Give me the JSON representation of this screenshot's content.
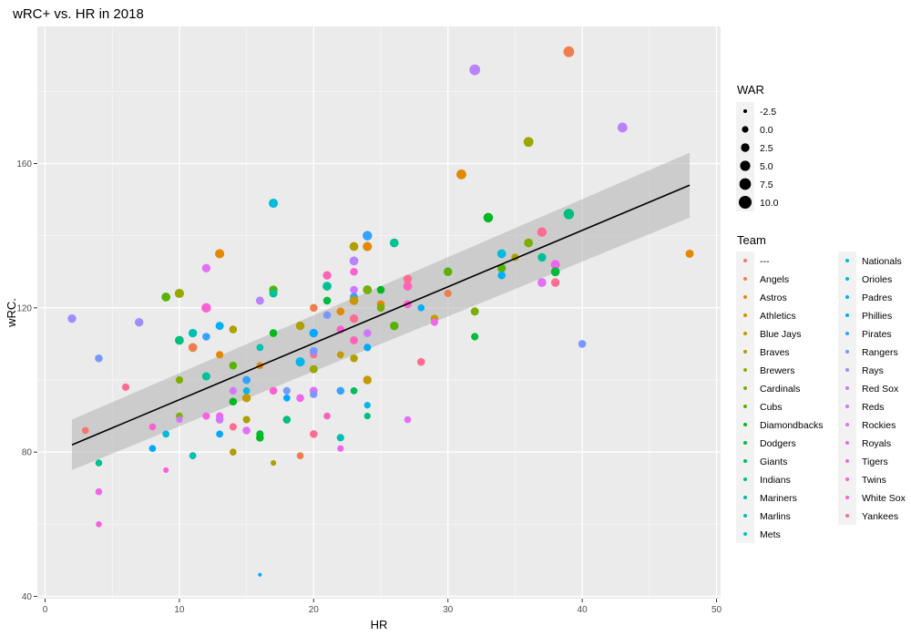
{
  "chart_data": {
    "type": "scatter",
    "title": "wRC+ vs. HR in 2018",
    "xlabel": "HR",
    "ylabel": "wRC.",
    "xlim": [
      0,
      50
    ],
    "ylim": [
      40,
      195
    ],
    "xticks": [
      0,
      10,
      20,
      30,
      40,
      50
    ],
    "yticks": [
      40,
      80,
      120,
      160
    ],
    "grid": true,
    "legend_placement": "right",
    "size_legend": {
      "title": "WAR",
      "values": [
        "-2.5",
        "0.0",
        "2.5",
        "5.0",
        "7.5",
        "10.0"
      ]
    },
    "color_legend": {
      "title": "Team",
      "teams": [
        "---",
        "Angels",
        "Astros",
        "Athletics",
        "Blue Jays",
        "Braves",
        "Brewers",
        "Cardinals",
        "Cubs",
        "Diamondbacks",
        "Dodgers",
        "Giants",
        "Indians",
        "Mariners",
        "Marlins",
        "Mets",
        "Nationals",
        "Orioles",
        "Padres",
        "Phillies",
        "Pirates",
        "Rangers",
        "Rays",
        "Red Sox",
        "Reds",
        "Rockies",
        "Royals",
        "Tigers",
        "Twins",
        "White Sox",
        "Yankees"
      ],
      "colors": [
        "#F8766D",
        "#F07E4D",
        "#E38900",
        "#D59100",
        "#C49A00",
        "#B09F00",
        "#99A800",
        "#7CAE00",
        "#58B300",
        "#00B81F",
        "#00BB3B",
        "#00BD5C",
        "#00BF7D",
        "#00C097",
        "#00C0AF",
        "#00BFC4",
        "#00BCD8",
        "#00B7E9",
        "#00B0F6",
        "#00A9FF",
        "#35A2FF",
        "#7997FF",
        "#9F8CFF",
        "#BA83FF",
        "#D177FF",
        "#E46FF6",
        "#F066EA",
        "#F862DC",
        "#FD61D1",
        "#FF63B7",
        "#FF6C91"
      ]
    },
    "trend": {
      "x": [
        2,
        48
      ],
      "y": [
        82,
        154
      ],
      "ci_low_start": 75,
      "ci_high_start": 89,
      "ci_low_end": 145,
      "ci_high_end": 163
    },
    "points": [
      {
        "x": 2,
        "y": 117,
        "war": 2.5,
        "team": "Rays"
      },
      {
        "x": 3,
        "y": 86,
        "war": 0.5,
        "team": "---"
      },
      {
        "x": 4,
        "y": 106,
        "war": 1.5,
        "team": "Rangers"
      },
      {
        "x": 4,
        "y": 77,
        "war": 0.5,
        "team": "Mariners"
      },
      {
        "x": 4,
        "y": 69,
        "war": 0.5,
        "team": "Royals"
      },
      {
        "x": 4,
        "y": 60,
        "war": -0.5,
        "team": "Tigers"
      },
      {
        "x": 6,
        "y": 98,
        "war": 1.0,
        "team": "Yankees"
      },
      {
        "x": 7,
        "y": 116,
        "war": 2.5,
        "team": "Rays"
      },
      {
        "x": 8,
        "y": 87,
        "war": 0.5,
        "team": "Twins"
      },
      {
        "x": 8,
        "y": 81,
        "war": 0.5,
        "team": "Phillies"
      },
      {
        "x": 9,
        "y": 123,
        "war": 3.0,
        "team": "Cubs"
      },
      {
        "x": 9,
        "y": 85,
        "war": 0.5,
        "team": "Nationals"
      },
      {
        "x": 9,
        "y": 75,
        "war": -1.0,
        "team": "Tigers"
      },
      {
        "x": 10,
        "y": 124,
        "war": 3.5,
        "team": "Brewers"
      },
      {
        "x": 10,
        "y": 111,
        "war": 3.0,
        "team": "Indians"
      },
      {
        "x": 10,
        "y": 100,
        "war": 1.0,
        "team": "Cardinals"
      },
      {
        "x": 10,
        "y": 90,
        "war": 0.5,
        "team": "Cardinals"
      },
      {
        "x": 10,
        "y": 89,
        "war": 0.0,
        "team": "Reds"
      },
      {
        "x": 11,
        "y": 113,
        "war": 2.5,
        "team": "Marlins"
      },
      {
        "x": 11,
        "y": 109,
        "war": 3.0,
        "team": "Angels"
      },
      {
        "x": 11,
        "y": 79,
        "war": 0.5,
        "team": "Marlins"
      },
      {
        "x": 12,
        "y": 131,
        "war": 2.5,
        "team": "Rockies"
      },
      {
        "x": 12,
        "y": 120,
        "war": 4.0,
        "team": "Twins"
      },
      {
        "x": 12,
        "y": 112,
        "war": 1.5,
        "team": "Pirates"
      },
      {
        "x": 12,
        "y": 101,
        "war": 2.0,
        "team": "Mariners"
      },
      {
        "x": 12,
        "y": 90,
        "war": 1.0,
        "team": "Tigers"
      },
      {
        "x": 13,
        "y": 135,
        "war": 3.5,
        "team": "Astros"
      },
      {
        "x": 13,
        "y": 115,
        "war": 2.0,
        "team": "Padres"
      },
      {
        "x": 13,
        "y": 107,
        "war": 1.0,
        "team": "Astros"
      },
      {
        "x": 13,
        "y": 90,
        "war": 1.0,
        "team": "Royals"
      },
      {
        "x": 13,
        "y": 89,
        "war": 1.5,
        "team": "Reds"
      },
      {
        "x": 13,
        "y": 85,
        "war": 0.5,
        "team": "Phillies"
      },
      {
        "x": 14,
        "y": 114,
        "war": 1.5,
        "team": "Braves"
      },
      {
        "x": 14,
        "y": 104,
        "war": 1.5,
        "team": "Cubs"
      },
      {
        "x": 14,
        "y": 97,
        "war": 1.0,
        "team": "Reds"
      },
      {
        "x": 14,
        "y": 94,
        "war": 1.5,
        "team": "Diamondbacks"
      },
      {
        "x": 14,
        "y": 87,
        "war": 1.0,
        "team": "Yankees"
      },
      {
        "x": 14,
        "y": 80,
        "war": 0.5,
        "team": "Braves"
      },
      {
        "x": 15,
        "y": 100,
        "war": 2.0,
        "team": "Pirates"
      },
      {
        "x": 15,
        "y": 97,
        "war": 0.5,
        "team": "Orioles"
      },
      {
        "x": 15,
        "y": 95,
        "war": 2.5,
        "team": "Blue Jays"
      },
      {
        "x": 15,
        "y": 89,
        "war": 1.0,
        "team": "Braves"
      },
      {
        "x": 15,
        "y": 86,
        "war": 1.5,
        "team": "Rockies"
      },
      {
        "x": 16,
        "y": 122,
        "war": 2.0,
        "team": "Red Sox"
      },
      {
        "x": 16,
        "y": 109,
        "war": 0.5,
        "team": "Marlins"
      },
      {
        "x": 16,
        "y": 104,
        "war": 0.5,
        "team": "Astros"
      },
      {
        "x": 16,
        "y": 85,
        "war": 1.0,
        "team": "Dodgers"
      },
      {
        "x": 16,
        "y": 84,
        "war": 1.5,
        "team": "Diamondbacks"
      },
      {
        "x": 16,
        "y": 46,
        "war": -2.5,
        "team": "Phillies"
      },
      {
        "x": 17,
        "y": 149,
        "war": 3.5,
        "team": "Nationals"
      },
      {
        "x": 17,
        "y": 125,
        "war": 2.5,
        "team": "Cubs"
      },
      {
        "x": 17,
        "y": 124,
        "war": 2.0,
        "team": "Mariners"
      },
      {
        "x": 17,
        "y": 113,
        "war": 1.5,
        "team": "Diamondbacks"
      },
      {
        "x": 17,
        "y": 97,
        "war": 1.5,
        "team": "Twins"
      },
      {
        "x": 17,
        "y": 77,
        "war": -1.0,
        "team": "Braves"
      },
      {
        "x": 18,
        "y": 97,
        "war": 1.0,
        "team": "Rangers"
      },
      {
        "x": 18,
        "y": 95,
        "war": 0.5,
        "team": "Phillies"
      },
      {
        "x": 18,
        "y": 89,
        "war": 1.5,
        "team": "Indians"
      },
      {
        "x": 19,
        "y": 115,
        "war": 2.5,
        "team": "Braves"
      },
      {
        "x": 19,
        "y": 105,
        "war": 3.5,
        "team": "Orioles"
      },
      {
        "x": 19,
        "y": 95,
        "war": 1.5,
        "team": "Royals"
      },
      {
        "x": 19,
        "y": 79,
        "war": 0.5,
        "team": "Angels"
      },
      {
        "x": 20,
        "y": 120,
        "war": 1.5,
        "team": "Angels"
      },
      {
        "x": 20,
        "y": 113,
        "war": 2.5,
        "team": "Phillies"
      },
      {
        "x": 20,
        "y": 107,
        "war": 1.0,
        "team": "Yankees"
      },
      {
        "x": 20,
        "y": 108,
        "war": 2.0,
        "team": "Rangers"
      },
      {
        "x": 20,
        "y": 103,
        "war": 2.0,
        "team": "Brewers"
      },
      {
        "x": 20,
        "y": 97,
        "war": 2.0,
        "team": "Rockies"
      },
      {
        "x": 20,
        "y": 96,
        "war": 1.0,
        "team": "Rangers"
      },
      {
        "x": 20,
        "y": 85,
        "war": 1.5,
        "team": "Yankees"
      },
      {
        "x": 21,
        "y": 129,
        "war": 2.5,
        "team": "White Sox"
      },
      {
        "x": 21,
        "y": 126,
        "war": 3.0,
        "team": "Mariners"
      },
      {
        "x": 21,
        "y": 122,
        "war": 1.5,
        "team": "Dodgers"
      },
      {
        "x": 21,
        "y": 118,
        "war": 1.5,
        "team": "Rangers"
      },
      {
        "x": 21,
        "y": 90,
        "war": 0.5,
        "team": "White Sox"
      },
      {
        "x": 22,
        "y": 119,
        "war": 1.5,
        "team": "Astros"
      },
      {
        "x": 22,
        "y": 114,
        "war": 1.5,
        "team": "Twins"
      },
      {
        "x": 22,
        "y": 107,
        "war": 0.5,
        "team": "Blue Jays"
      },
      {
        "x": 22,
        "y": 97,
        "war": 1.5,
        "team": "Pirates"
      },
      {
        "x": 22,
        "y": 84,
        "war": 1.0,
        "team": "Marlins"
      },
      {
        "x": 22,
        "y": 81,
        "war": 0.0,
        "team": "Royals"
      },
      {
        "x": 23,
        "y": 137,
        "war": 3.0,
        "team": "Braves"
      },
      {
        "x": 23,
        "y": 133,
        "war": 3.0,
        "team": "Red Sox"
      },
      {
        "x": 23,
        "y": 130,
        "war": 1.5,
        "team": "Twins"
      },
      {
        "x": 23,
        "y": 125,
        "war": 1.5,
        "team": "Reds"
      },
      {
        "x": 23,
        "y": 123,
        "war": 2.0,
        "team": "Pirates"
      },
      {
        "x": 23,
        "y": 122,
        "war": 3.0,
        "team": "Blue Jays"
      },
      {
        "x": 23,
        "y": 117,
        "war": 2.5,
        "team": "Yankees"
      },
      {
        "x": 23,
        "y": 111,
        "war": 2.0,
        "team": "White Sox"
      },
      {
        "x": 23,
        "y": 106,
        "war": 1.5,
        "team": "Braves"
      },
      {
        "x": 23,
        "y": 97,
        "war": 0.5,
        "team": "Giants"
      },
      {
        "x": 24,
        "y": 140,
        "war": 4.0,
        "team": "Pirates"
      },
      {
        "x": 24,
        "y": 137,
        "war": 3.5,
        "team": "Astros"
      },
      {
        "x": 24,
        "y": 125,
        "war": 3.0,
        "team": "Dodgers"
      },
      {
        "x": 24,
        "y": 125,
        "war": 2.5,
        "team": "Cardinals"
      },
      {
        "x": 24,
        "y": 113,
        "war": 1.5,
        "team": "Reds"
      },
      {
        "x": 24,
        "y": 109,
        "war": 1.0,
        "team": "Phillies"
      },
      {
        "x": 24,
        "y": 100,
        "war": 2.5,
        "team": "Blue Jays"
      },
      {
        "x": 24,
        "y": 93,
        "war": 0.0,
        "team": "Orioles"
      },
      {
        "x": 24,
        "y": 90,
        "war": 0.0,
        "team": "Indians"
      },
      {
        "x": 25,
        "y": 125,
        "war": 1.5,
        "team": "Diamondbacks"
      },
      {
        "x": 25,
        "y": 121,
        "war": 1.5,
        "team": "Astros"
      },
      {
        "x": 25,
        "y": 120,
        "war": 1.5,
        "team": "Cardinals"
      },
      {
        "x": 26,
        "y": 138,
        "war": 3.0,
        "team": "Mariners"
      },
      {
        "x": 26,
        "y": 115,
        "war": 2.5,
        "team": "Cubs"
      },
      {
        "x": 27,
        "y": 128,
        "war": 2.5,
        "team": "Yankees"
      },
      {
        "x": 27,
        "y": 126,
        "war": 3.0,
        "team": "White Sox"
      },
      {
        "x": 27,
        "y": 121,
        "war": 2.0,
        "team": "Twins"
      },
      {
        "x": 27,
        "y": 89,
        "war": 0.5,
        "team": "Rockies"
      },
      {
        "x": 28,
        "y": 120,
        "war": 0.5,
        "team": "Padres"
      },
      {
        "x": 28,
        "y": 105,
        "war": 1.5,
        "team": "Yankees"
      },
      {
        "x": 29,
        "y": 117,
        "war": 1.5,
        "team": "Blue Jays"
      },
      {
        "x": 29,
        "y": 116,
        "war": 1.0,
        "team": "Royals"
      },
      {
        "x": 30,
        "y": 130,
        "war": 2.5,
        "team": "Cubs"
      },
      {
        "x": 30,
        "y": 124,
        "war": 1.0,
        "team": "Angels"
      },
      {
        "x": 31,
        "y": 157,
        "war": 4.5,
        "team": "Astros"
      },
      {
        "x": 32,
        "y": 186,
        "war": 6.0,
        "team": "Red Sox"
      },
      {
        "x": 32,
        "y": 119,
        "war": 2.0,
        "team": "Cardinals"
      },
      {
        "x": 32,
        "y": 112,
        "war": 1.0,
        "team": "Dodgers"
      },
      {
        "x": 33,
        "y": 145,
        "war": 4.0,
        "team": "Diamondbacks"
      },
      {
        "x": 34,
        "y": 135,
        "war": 3.0,
        "team": "Nationals"
      },
      {
        "x": 34,
        "y": 131,
        "war": 2.5,
        "team": "Cubs"
      },
      {
        "x": 34,
        "y": 129,
        "war": 1.5,
        "team": "Padres"
      },
      {
        "x": 35,
        "y": 134,
        "war": 1.0,
        "team": "Braves"
      },
      {
        "x": 36,
        "y": 166,
        "war": 4.5,
        "team": "Brewers"
      },
      {
        "x": 36,
        "y": 138,
        "war": 3.0,
        "team": "Cardinals"
      },
      {
        "x": 37,
        "y": 141,
        "war": 4.0,
        "team": "Yankees"
      },
      {
        "x": 37,
        "y": 134,
        "war": 2.5,
        "team": "Mariners"
      },
      {
        "x": 37,
        "y": 127,
        "war": 3.0,
        "team": "Rockies"
      },
      {
        "x": 38,
        "y": 132,
        "war": 3.5,
        "team": "Royals"
      },
      {
        "x": 38,
        "y": 130,
        "war": 3.0,
        "team": "Dodgers"
      },
      {
        "x": 38,
        "y": 127,
        "war": 2.5,
        "team": "Yankees"
      },
      {
        "x": 39,
        "y": 191,
        "war": 6.0,
        "team": "Angels"
      },
      {
        "x": 39,
        "y": 146,
        "war": 5.5,
        "team": "Indians"
      },
      {
        "x": 40,
        "y": 110,
        "war": 1.5,
        "team": "Rangers"
      },
      {
        "x": 43,
        "y": 170,
        "war": 4.5,
        "team": "Red Sox"
      },
      {
        "x": 48,
        "y": 135,
        "war": 2.0,
        "team": "Astros"
      }
    ]
  }
}
